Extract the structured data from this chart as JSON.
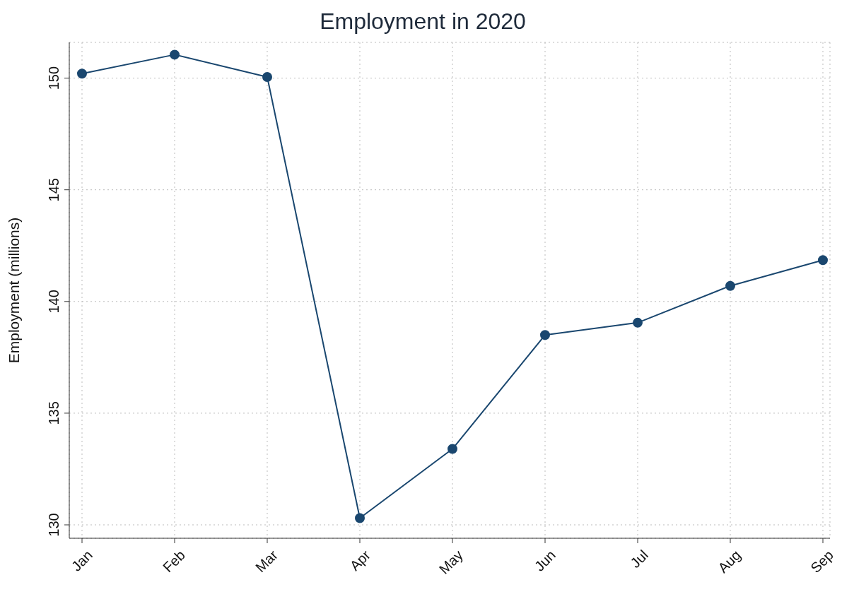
{
  "chart_data": {
    "type": "line",
    "title": "Employment in 2020",
    "ylabel": "Employment (millions)",
    "categories": [
      "Jan",
      "Feb",
      "Mar",
      "Apr",
      "May",
      "Jun",
      "Jul",
      "Aug",
      "Sep"
    ],
    "series": [
      {
        "color": "#1a476f",
        "values": [
          150.2,
          151.05,
          150.05,
          130.3,
          133.4,
          138.5,
          139.05,
          140.7,
          141.85
        ]
      }
    ],
    "ylim": [
      129.4,
      151.6
    ],
    "yticks": [
      130,
      135,
      140,
      145,
      150
    ],
    "grid": true,
    "marker": "circle",
    "line_style": "solid"
  }
}
